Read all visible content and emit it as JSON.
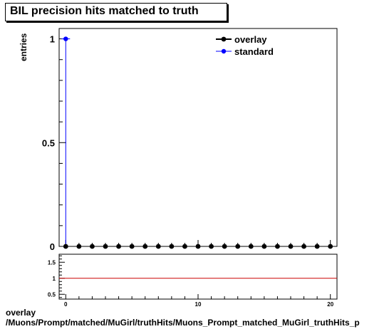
{
  "chart_data": {
    "type": "scatter",
    "title": "BIL precision hits matched to truth",
    "ylabel": "entries",
    "xlabel": "",
    "xlim": [
      -0.5,
      20.5
    ],
    "ylim": [
      0,
      1.05
    ],
    "x_ticks": [
      0,
      10,
      20
    ],
    "y_ticks": [
      0,
      0.5,
      1
    ],
    "y_tick_labels": [
      "0",
      "0.5",
      "1"
    ],
    "series": [
      {
        "name": "overlay",
        "color": "#000000",
        "x": [
          0,
          1,
          2,
          3,
          4,
          5,
          6,
          7,
          8,
          9,
          10,
          11,
          12,
          13,
          14,
          15,
          16,
          17,
          18,
          19,
          20
        ],
        "y": [
          0,
          0,
          0,
          0,
          0,
          0,
          0,
          0,
          0,
          0,
          0,
          0,
          0,
          0,
          0,
          0,
          0,
          0,
          0,
          0,
          0
        ]
      },
      {
        "name": "standard",
        "color": "#0000ff",
        "x": [
          0
        ],
        "y": [
          1
        ]
      }
    ],
    "ratio_panel": {
      "ylim": [
        0.35,
        1.75
      ],
      "y_ticks": [
        0.5,
        1,
        1.5
      ],
      "y_tick_labels": [
        "0.5",
        "1",
        "1.5"
      ],
      "x_tick_labels": [
        "0",
        "10",
        "20"
      ],
      "reference_value": 1,
      "reference_color": "#cc0000"
    },
    "legend_position": "top-right"
  },
  "footer": {
    "line1": "overlay",
    "line2": "/Muons/Prompt/matched/MuGirl/truthHits/Muons_Prompt_matched_MuGirl_truthHits_p"
  }
}
